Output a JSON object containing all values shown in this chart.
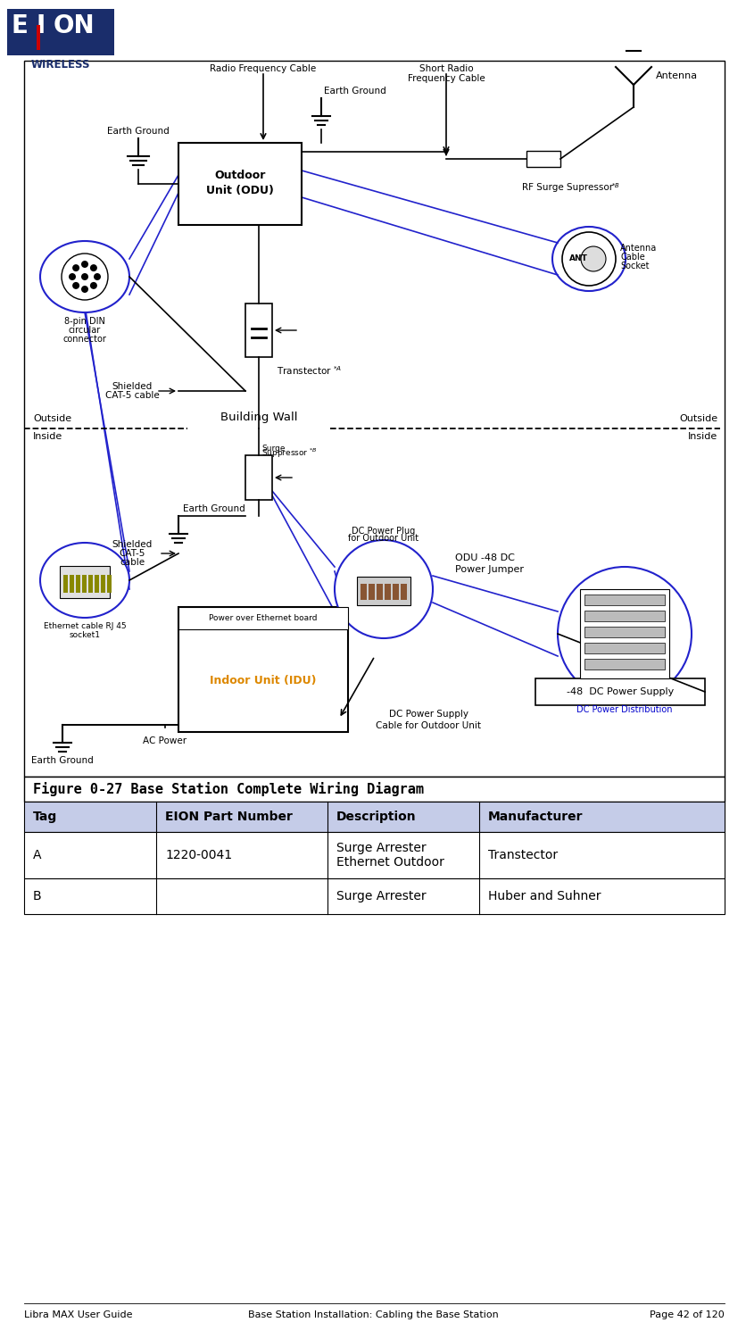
{
  "bg_color": "#ffffff",
  "logo_bg": "#1a2d6b",
  "logo_red": "#cc0000",
  "logo_text_wireless": "WIRELESS",
  "figure_caption": "Figure 0-27 Base Station Complete Wiring Diagram",
  "table_header_bg": "#c5cce8",
  "table_header_cols": [
    "Tag",
    "EION Part Number",
    "Description",
    "Manufacturer"
  ],
  "table_row1_col0": "A",
  "table_row1_col1": "1220-0041",
  "table_row1_col2a": "Surge Arrester",
  "table_row1_col2b": "Ethernet Outdoor",
  "table_row1_col3": "Transtector",
  "table_row2_col0": "B",
  "table_row2_col1": "",
  "table_row2_col2": "Surge Arrester",
  "table_row2_col3": "Huber and Suhner",
  "footer_left": "Libra MAX User Guide",
  "footer_center": "Base Station Installation: Cabling the Base Station",
  "footer_right": "Page 42 of 120",
  "blue": "#2222cc",
  "black": "#000000",
  "orange": "#dd8800",
  "dc_blue": "#0000cc"
}
